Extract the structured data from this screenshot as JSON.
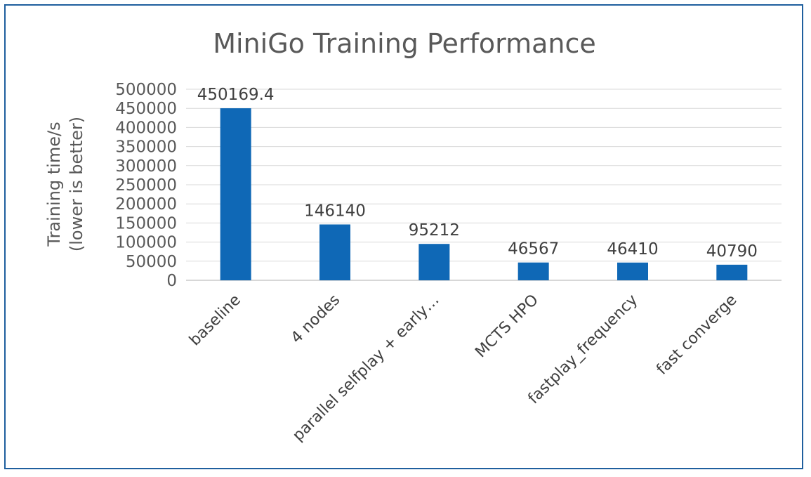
{
  "chart_data": {
    "type": "bar",
    "title": "MiniGo Training Performance",
    "ylabel": [
      "Training time/s",
      "(lower is better)"
    ],
    "xlabel": "",
    "ylim": [
      0,
      500000
    ],
    "yticks": [
      "500000",
      "450000",
      "400000",
      "350000",
      "300000",
      "250000",
      "200000",
      "150000",
      "100000",
      "50000",
      "0"
    ],
    "ytick_values": [
      500000,
      450000,
      400000,
      350000,
      300000,
      250000,
      200000,
      150000,
      100000,
      50000,
      0
    ],
    "categories": [
      "baseline",
      "4 nodes",
      "parallel selfplay + early…",
      "MCTS HPO",
      "fastplay_frequency",
      "fast converge"
    ],
    "values": [
      450169.4,
      146140,
      95212,
      46567,
      46410,
      40790
    ],
    "data_labels": [
      "450169.4",
      "146140",
      "95212",
      "46567",
      "46410",
      "40790"
    ],
    "bar_color": "#0f68b6",
    "grid": true,
    "legend": "none"
  },
  "frame_color": "#1f5f9e"
}
